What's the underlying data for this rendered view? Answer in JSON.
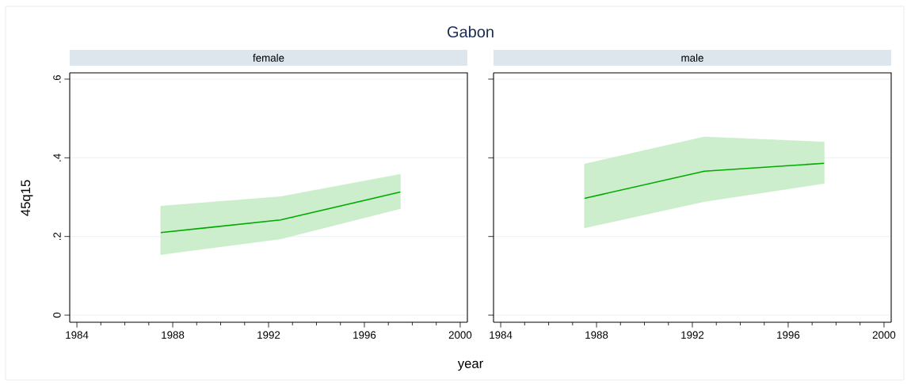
{
  "chart_data": [
    {
      "type": "line",
      "title": "Gabon",
      "subtitle": "female",
      "xlabel": "year",
      "ylabel": "45q15",
      "x": [
        1987.5,
        1992.5,
        1997.5
      ],
      "series": [
        {
          "color": "#00aa00",
          "values": [
            0.21,
            0.242,
            0.313
          ],
          "lower": [
            0.154,
            0.194,
            0.271
          ],
          "upper": [
            0.277,
            0.301,
            0.358
          ]
        }
      ],
      "xlim": [
        1983.7,
        2000.3
      ],
      "ylim": [
        -0.018,
        0.616
      ],
      "xticks": [
        1984,
        {
          "value": 1985,
          "label": null
        },
        {
          "value": 1986,
          "label": null
        },
        {
          "value": 1987,
          "label": null
        },
        1988,
        {
          "value": 1989,
          "label": null
        },
        {
          "value": 1990,
          "label": null
        },
        {
          "value": 1991,
          "label": null
        },
        1992,
        {
          "value": 1993,
          "label": null
        },
        {
          "value": 1994,
          "label": null
        },
        {
          "value": 1995,
          "label": null
        },
        1996,
        {
          "value": 1997,
          "label": null
        },
        {
          "value": 1998,
          "label": null
        },
        {
          "value": 1999,
          "label": null
        },
        2000
      ],
      "yticks": [
        {
          "value": 0,
          "label": "0"
        },
        {
          "value": 0.2,
          "label": ".2"
        },
        {
          "value": 0.4,
          "label": ".4"
        },
        {
          "value": 0.6,
          "label": ".6"
        }
      ],
      "grid": "y"
    },
    {
      "type": "line",
      "subtitle": "male",
      "x": [
        1987.5,
        1992.5,
        1997.5
      ],
      "series": [
        {
          "color": "#00aa00",
          "values": [
            0.297,
            0.366,
            0.386
          ],
          "lower": [
            0.222,
            0.289,
            0.335
          ],
          "upper": [
            0.384,
            0.453,
            0.44
          ]
        }
      ],
      "xlim": [
        1983.7,
        2000.3
      ],
      "ylim": [
        -0.018,
        0.616
      ],
      "xticks": [
        1984,
        {
          "value": 1985,
          "label": null
        },
        {
          "value": 1986,
          "label": null
        },
        {
          "value": 1987,
          "label": null
        },
        1988,
        {
          "value": 1989,
          "label": null
        },
        {
          "value": 1990,
          "label": null
        },
        {
          "value": 1991,
          "label": null
        },
        1992,
        {
          "value": 1993,
          "label": null
        },
        {
          "value": 1994,
          "label": null
        },
        {
          "value": 1995,
          "label": null
        },
        1996,
        {
          "value": 1997,
          "label": null
        },
        {
          "value": 1998,
          "label": null
        },
        {
          "value": 1999,
          "label": null
        },
        2000
      ],
      "yticks": [
        {
          "value": 0,
          "label": null
        },
        {
          "value": 0.2,
          "label": null
        },
        {
          "value": 0.4,
          "label": null
        },
        {
          "value": 0.6,
          "label": null
        }
      ],
      "grid": "y",
      "tick_labels": "x"
    }
  ]
}
